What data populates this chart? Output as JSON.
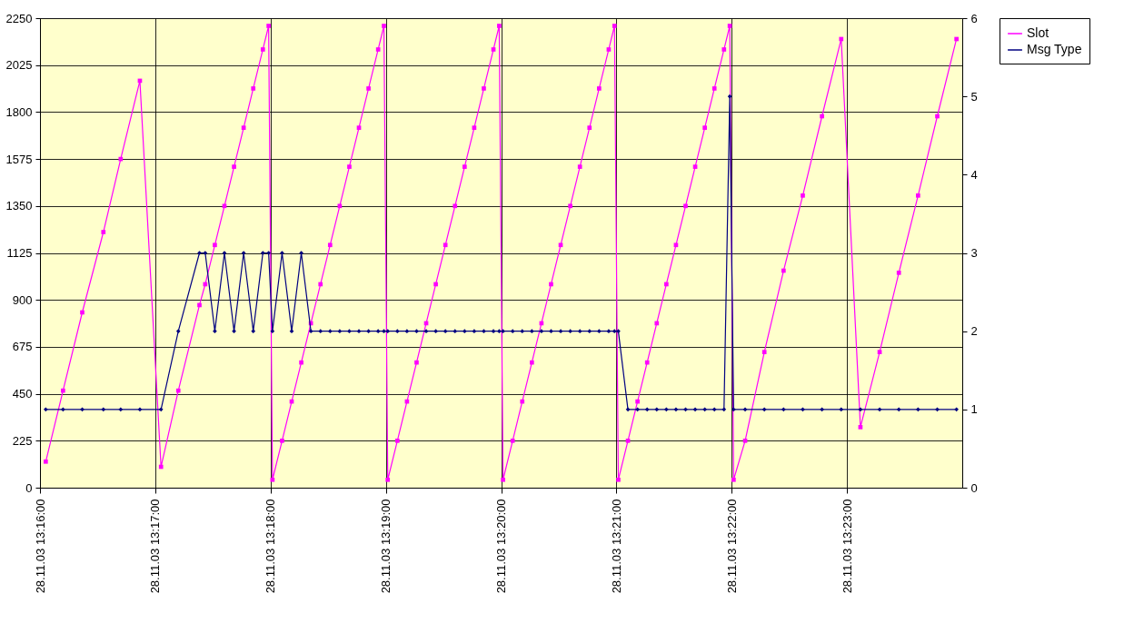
{
  "chart_data": {
    "type": "line",
    "x": [
      "--11-28T13:16:03",
      "--11-28T13:16:12",
      "--11-28T13:16:22",
      "--11-28T13:16:33",
      "--11-28T13:16:42",
      "--11-28T13:16:52",
      "--11-28T13:17:03",
      "--11-28T13:17:12",
      "--11-28T13:17:23",
      "--11-28T13:17:26",
      "--11-28T13:17:31",
      "--11-28T13:17:36",
      "--11-28T13:17:41",
      "--11-28T13:17:46",
      "--11-28T13:17:51",
      "--11-28T13:17:56",
      "--11-28T13:17:59",
      "--11-28T13:18:01",
      "--11-28T13:18:06",
      "--11-28T13:18:11",
      "--11-28T13:18:16",
      "--11-28T13:18:21",
      "--11-28T13:18:26",
      "--11-28T13:18:31",
      "--11-28T13:18:36",
      "--11-28T13:18:41",
      "--11-28T13:18:46",
      "--11-28T13:18:51",
      "--11-28T13:18:56",
      "--11-28T13:18:59",
      "--11-28T13:19:01",
      "--11-28T13:19:06",
      "--11-28T13:19:11",
      "--11-28T13:19:16",
      "--11-28T13:19:21",
      "--11-28T13:19:26",
      "--11-28T13:19:31",
      "--11-28T13:19:36",
      "--11-28T13:19:41",
      "--11-28T13:19:46",
      "--11-28T13:19:51",
      "--11-28T13:19:56",
      "--11-28T13:19:59",
      "--11-28T13:20:01",
      "--11-28T13:20:06",
      "--11-28T13:20:11",
      "--11-28T13:20:16",
      "--11-28T13:20:21",
      "--11-28T13:20:26",
      "--11-28T13:20:31",
      "--11-28T13:20:36",
      "--11-28T13:20:41",
      "--11-28T13:20:46",
      "--11-28T13:20:51",
      "--11-28T13:20:56",
      "--11-28T13:20:59",
      "--11-28T13:21:01",
      "--11-28T13:21:06",
      "--11-28T13:21:11",
      "--11-28T13:21:16",
      "--11-28T13:21:21",
      "--11-28T13:21:26",
      "--11-28T13:21:31",
      "--11-28T13:21:36",
      "--11-28T13:21:41",
      "--11-28T13:21:46",
      "--11-28T13:21:51",
      "--11-28T13:21:56",
      "--11-28T13:21:59",
      "--11-28T13:22:01",
      "--11-28T13:22:07",
      "--11-28T13:22:17",
      "--11-28T13:22:27",
      "--11-28T13:22:37",
      "--11-28T13:22:47",
      "--11-28T13:22:57",
      "--11-28T13:23:07",
      "--11-28T13:23:17",
      "--11-28T13:23:27",
      "--11-28T13:23:37",
      "--11-28T13:23:47",
      "--11-28T13:23:57"
    ],
    "series": [
      {
        "name": "Slot",
        "color": "#ff00ff",
        "marker": "square",
        "values": [
          125,
          465,
          840,
          1225,
          1575,
          1950,
          100,
          465,
          875,
          975,
          1163,
          1350,
          1538,
          1725,
          1913,
          2100,
          2213,
          38,
          225,
          413,
          600,
          788,
          975,
          1163,
          1350,
          1538,
          1725,
          1913,
          2100,
          2213,
          38,
          225,
          413,
          600,
          788,
          975,
          1163,
          1350,
          1538,
          1725,
          1913,
          2100,
          2213,
          38,
          225,
          413,
          600,
          788,
          975,
          1163,
          1350,
          1538,
          1725,
          1913,
          2100,
          2213,
          38,
          225,
          413,
          600,
          788,
          975,
          1163,
          1350,
          1538,
          1725,
          1913,
          2100,
          2213,
          38,
          225,
          650,
          1040,
          1400,
          1780,
          2150,
          290,
          650,
          1030,
          1400,
          1780,
          2150
        ]
      },
      {
        "name": "Msg Type",
        "color": "#000080",
        "marker": "diamond",
        "axis": "y2",
        "values": [
          1,
          1,
          1,
          1,
          1,
          1,
          1,
          2,
          3,
          3,
          2,
          3,
          2,
          3,
          2,
          3,
          3,
          2,
          3,
          2,
          3,
          2,
          2,
          2,
          2,
          2,
          2,
          2,
          2,
          2,
          2,
          2,
          2,
          2,
          2,
          2,
          2,
          2,
          2,
          2,
          2,
          2,
          2,
          2,
          2,
          2,
          2,
          2,
          2,
          2,
          2,
          2,
          2,
          2,
          2,
          2,
          2,
          1,
          1,
          1,
          1,
          1,
          1,
          1,
          1,
          1,
          1,
          1,
          5,
          1,
          1,
          1,
          1,
          1,
          1,
          1,
          1,
          1,
          1,
          1,
          1,
          1
        ]
      }
    ],
    "xlim": [
      "--11-28T13:16:00",
      "--11-28T13:24:00"
    ],
    "xticks": [
      {
        "value": "--11-28T13:16:00",
        "label": "28.11.03 13:16:00"
      },
      {
        "value": "--11-28T13:17:00",
        "label": "28.11.03 13:17:00"
      },
      {
        "value": "--11-28T13:18:00",
        "label": "28.11.03 13:18:00"
      },
      {
        "value": "--11-28T13:19:00",
        "label": "28.11.03 13:19:00"
      },
      {
        "value": "--11-28T13:20:00",
        "label": "28.11.03 13:20:00"
      },
      {
        "value": "--11-28T13:21:00",
        "label": "28.11.03 13:21:00"
      },
      {
        "value": "--11-28T13:22:00",
        "label": "28.11.03 13:22:00"
      },
      {
        "value": "--11-28T13:23:00",
        "label": "28.11.03 13:23:00"
      }
    ],
    "ylim": [
      0,
      2250
    ],
    "yticks": [
      0,
      225,
      450,
      675,
      900,
      1125,
      1350,
      1575,
      1800,
      2025,
      2250
    ],
    "y2lim": [
      0,
      6
    ],
    "y2ticks": [
      0,
      1,
      2,
      3,
      4,
      5,
      6
    ],
    "grid": true,
    "legend": "right",
    "line_style": "solid"
  }
}
